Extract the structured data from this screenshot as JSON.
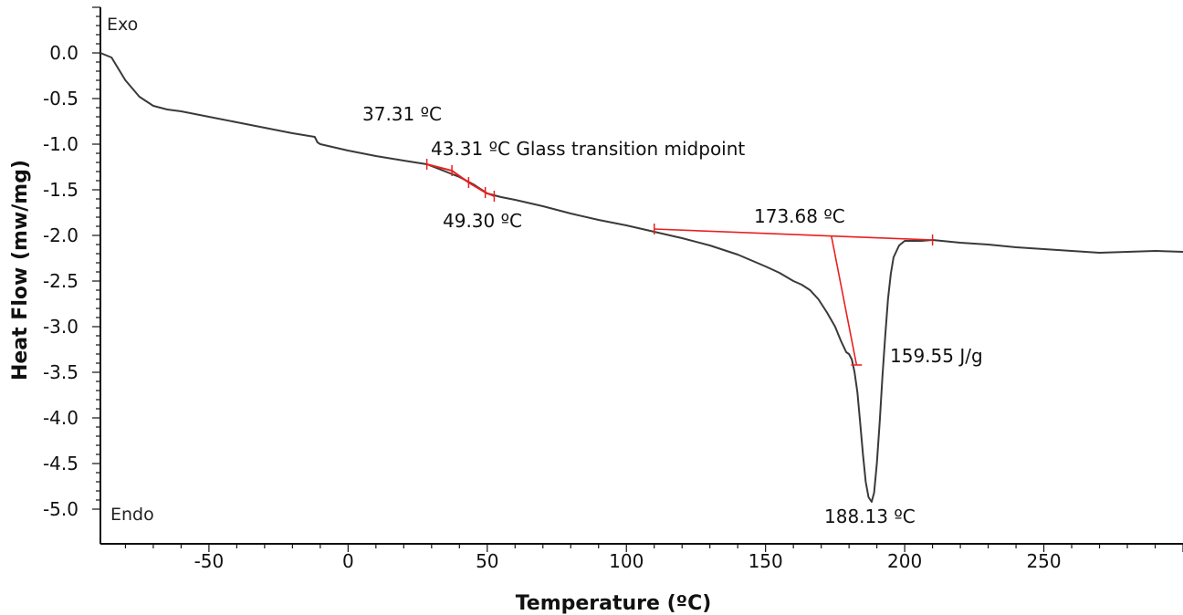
{
  "chart_data": {
    "type": "line",
    "title": "",
    "xlabel": "Temperature (ºC)",
    "ylabel": "Heat Flow (mw/mg)",
    "xlim": [
      -89,
      300
    ],
    "ylim": [
      -5.38,
      0.5
    ],
    "x_ticks": [
      -50,
      0,
      50,
      100,
      150,
      200,
      250
    ],
    "x_tick_labels": [
      "-50",
      "0",
      "50",
      "100",
      "150",
      "200",
      "250"
    ],
    "y_ticks": [
      0.0,
      -0.5,
      -1.0,
      -1.5,
      -2.0,
      -2.5,
      -3.0,
      -3.5,
      -4.0,
      -4.5,
      -5.0
    ],
    "y_tick_labels": [
      "0.0",
      "-0.5",
      "-1.0",
      "-1.5",
      "-2.0",
      "-2.5",
      "-3.0",
      "-3.5",
      "-4.0",
      "-4.5",
      "-5.0"
    ],
    "grid": false,
    "colors": {
      "curve": "#3a3a3a",
      "analysis": "#e8201e",
      "axis": "#111111"
    },
    "series": [
      {
        "x": [
          -89,
          -85,
          -80,
          -75,
          -70,
          -65,
          -60,
          -50,
          -40,
          -30,
          -20,
          -12,
          -11,
          -10,
          0,
          10,
          20,
          28.3,
          35,
          40,
          45,
          50,
          55,
          60,
          70,
          80,
          90,
          100,
          110,
          120,
          130,
          140,
          150,
          155,
          160,
          163,
          166,
          169,
          172,
          175,
          177,
          179,
          180,
          181,
          182,
          183,
          184,
          185,
          186,
          187,
          188.13,
          189,
          190,
          191,
          192,
          193,
          194,
          195,
          196,
          198,
          200,
          203,
          206,
          210,
          220,
          230,
          240,
          250,
          260,
          270,
          280,
          290,
          300
        ],
        "y": [
          0.0,
          -0.05,
          -0.3,
          -0.48,
          -0.58,
          -0.62,
          -0.64,
          -0.7,
          -0.76,
          -0.82,
          -0.88,
          -0.92,
          -0.98,
          -1.0,
          -1.07,
          -1.13,
          -1.18,
          -1.22,
          -1.3,
          -1.36,
          -1.44,
          -1.54,
          -1.58,
          -1.61,
          -1.68,
          -1.76,
          -1.83,
          -1.89,
          -1.96,
          -2.03,
          -2.11,
          -2.21,
          -2.34,
          -2.41,
          -2.5,
          -2.54,
          -2.6,
          -2.7,
          -2.84,
          -3.0,
          -3.15,
          -3.28,
          -3.3,
          -3.36,
          -3.5,
          -3.72,
          -4.05,
          -4.4,
          -4.7,
          -4.87,
          -4.92,
          -4.82,
          -4.5,
          -4.05,
          -3.55,
          -3.1,
          -2.7,
          -2.42,
          -2.24,
          -2.11,
          -2.06,
          -2.06,
          -2.06,
          -2.05,
          -2.08,
          -2.1,
          -2.13,
          -2.15,
          -2.17,
          -2.19,
          -2.18,
          -2.17,
          -2.18
        ]
      }
    ],
    "glass_transition": {
      "onset_label": "37.31 ºC",
      "midpoint_label": "43.31 ºC Glass transition midpoint",
      "end_label": "49.30 ºC",
      "markers": [
        {
          "x": 28.3,
          "y": -1.22
        },
        {
          "x": 37.31,
          "y": -1.29
        },
        {
          "x": 43.31,
          "y": -1.42
        },
        {
          "x": 49.3,
          "y": -1.53
        },
        {
          "x": 52.5,
          "y": -1.57
        }
      ]
    },
    "melting_peak": {
      "baseline": [
        {
          "x": 110,
          "y": -1.93
        },
        {
          "x": 210,
          "y": -2.05
        }
      ],
      "onset_line": [
        {
          "x": 173.68,
          "y": -2.01
        },
        {
          "x": 182.7,
          "y": -3.42
        }
      ],
      "onset_label": "173.68 ºC",
      "enthalpy_label": "159.55 J/g",
      "peak_label": "188.13 ºC"
    },
    "corner_labels": {
      "top": "Exo",
      "bottom": "Endo"
    }
  }
}
